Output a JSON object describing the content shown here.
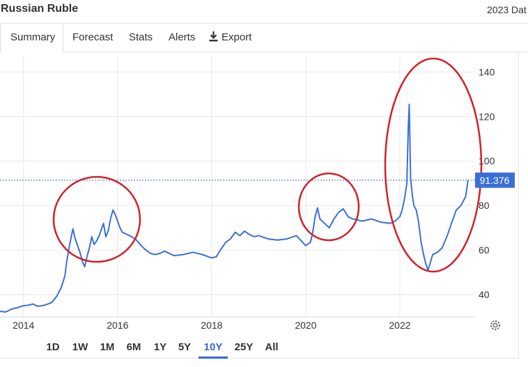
{
  "header": {
    "title": "Russian Ruble",
    "date_note": "2023 Dat"
  },
  "tabs": [
    {
      "label": "Summary",
      "active": true
    },
    {
      "label": "Forecast",
      "active": false
    },
    {
      "label": "Stats",
      "active": false
    },
    {
      "label": "Alerts",
      "active": false
    },
    {
      "label": "Export",
      "active": false,
      "icon": "download-icon"
    }
  ],
  "ranges": [
    {
      "label": "1D",
      "active": false
    },
    {
      "label": "1W",
      "active": false
    },
    {
      "label": "1M",
      "active": false
    },
    {
      "label": "6M",
      "active": false
    },
    {
      "label": "1Y",
      "active": false
    },
    {
      "label": "5Y",
      "active": false
    },
    {
      "label": "10Y",
      "active": true
    },
    {
      "label": "25Y",
      "active": false
    },
    {
      "label": "All",
      "active": false
    }
  ],
  "colors": {
    "line": "#3a6fd8",
    "current_badge": "#3a6fd8",
    "annotation": "#d0202a",
    "grid": "#e8e8e8",
    "active_range": "#3367d6"
  },
  "chart_data": {
    "type": "line",
    "x_ticks": [
      "2014",
      "2016",
      "2018",
      "2020",
      "2022"
    ],
    "y_ticks": [
      40,
      60,
      80,
      100,
      120,
      140
    ],
    "xlim": [
      2013.5,
      2023.6
    ],
    "ylim": [
      30,
      147
    ],
    "grid": true,
    "y_axis_side": "right",
    "current_value": 91.376,
    "current_value_label": "91.376",
    "series": [
      {
        "x": [
          2013.5,
          2013.62,
          2013.75,
          2013.88,
          2014.0,
          2014.1,
          2014.2,
          2014.3,
          2014.4,
          2014.5,
          2014.6,
          2014.7,
          2014.8,
          2014.88,
          2014.92,
          2014.96,
          2015.0,
          2015.05,
          2015.1,
          2015.15,
          2015.2,
          2015.25,
          2015.3,
          2015.35,
          2015.4,
          2015.45,
          2015.5,
          2015.55,
          2015.6,
          2015.65,
          2015.7,
          2015.75,
          2015.8,
          2015.85,
          2015.9,
          2015.95,
          2016.0,
          2016.05,
          2016.1,
          2016.2,
          2016.3,
          2016.4,
          2016.5,
          2016.6,
          2016.7,
          2016.8,
          2016.9,
          2017.0,
          2017.2,
          2017.4,
          2017.6,
          2017.8,
          2018.0,
          2018.1,
          2018.2,
          2018.3,
          2018.4,
          2018.5,
          2018.6,
          2018.7,
          2018.8,
          2018.9,
          2019.0,
          2019.2,
          2019.4,
          2019.6,
          2019.8,
          2020.0,
          2020.1,
          2020.15,
          2020.2,
          2020.25,
          2020.3,
          2020.4,
          2020.5,
          2020.6,
          2020.7,
          2020.8,
          2020.9,
          2021.0,
          2021.2,
          2021.4,
          2021.6,
          2021.8,
          2021.9,
          2022.0,
          2022.05,
          2022.1,
          2022.15,
          2022.18,
          2022.2,
          2022.23,
          2022.27,
          2022.3,
          2022.35,
          2022.4,
          2022.45,
          2022.5,
          2022.55,
          2022.6,
          2022.7,
          2022.8,
          2022.9,
          2023.0,
          2023.1,
          2023.2,
          2023.3,
          2023.4,
          2023.45
        ],
        "values": [
          32.5,
          32.2,
          33.5,
          34.2,
          35.0,
          35.2,
          35.8,
          34.8,
          35.0,
          35.6,
          36.5,
          39.0,
          43.0,
          48.5,
          55.0,
          60.0,
          64.5,
          69.5,
          65.0,
          62.0,
          59.0,
          55.0,
          52.5,
          57.0,
          61.0,
          66.0,
          62.5,
          64.0,
          66.0,
          69.0,
          72.0,
          66.0,
          68.5,
          74.0,
          78.0,
          76.0,
          73.0,
          70.0,
          68.0,
          67.0,
          66.0,
          64.5,
          62.0,
          60.0,
          58.5,
          58.0,
          58.5,
          59.5,
          57.5,
          58.0,
          59.0,
          58.0,
          56.5,
          57.0,
          60.5,
          63.5,
          65.0,
          68.0,
          66.5,
          68.5,
          67.0,
          66.0,
          66.5,
          65.0,
          64.5,
          65.0,
          66.5,
          62.0,
          63.5,
          68.0,
          75.0,
          79.0,
          74.0,
          72.0,
          70.0,
          74.0,
          77.0,
          78.5,
          75.0,
          74.0,
          73.0,
          74.0,
          72.5,
          72.0,
          73.0,
          75.0,
          78.0,
          83.0,
          90.0,
          115.0,
          125.5,
          92.0,
          84.0,
          80.0,
          78.0,
          72.5,
          64.0,
          58.5,
          54.0,
          51.0,
          58.0,
          59.0,
          61.0,
          66.0,
          72.0,
          78.0,
          80.0,
          84.0,
          91.376
        ]
      }
    ]
  }
}
